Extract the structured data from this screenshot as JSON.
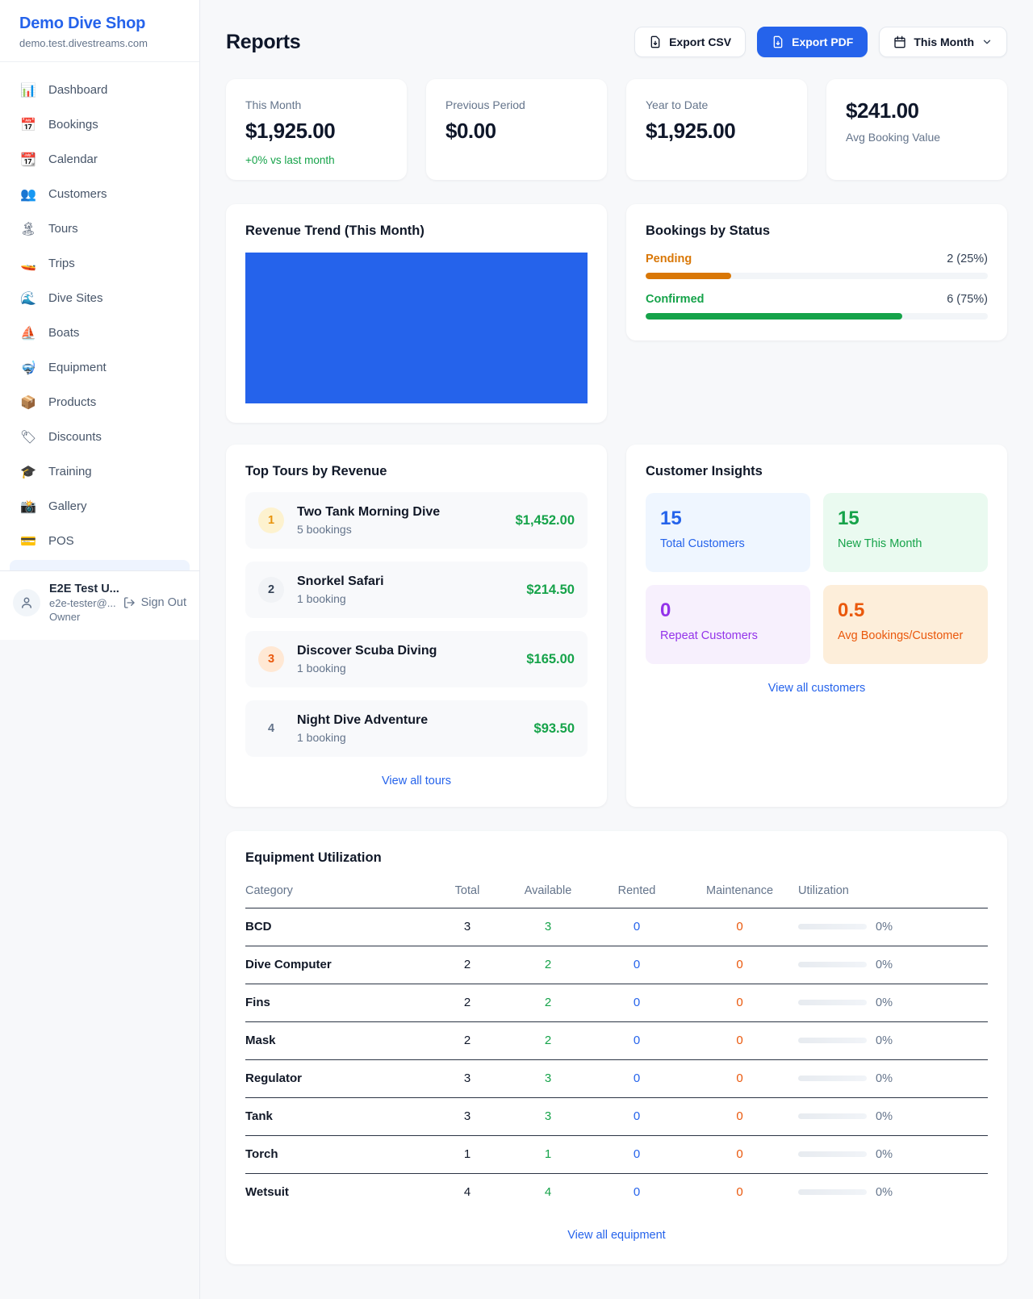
{
  "colors": {
    "accent_blue": "#2563eb",
    "green": "#16a34a",
    "amber": "#d97706",
    "orange": "#ea580c",
    "purple": "#9333ea",
    "text_muted": "#64748b"
  },
  "sidebar": {
    "brand": {
      "name": "Demo Dive Shop",
      "domain": "demo.test.divestreams.com"
    },
    "nav": [
      {
        "name": "sidebar-item-dashboard",
        "icon": "📊",
        "label": "Dashboard"
      },
      {
        "name": "sidebar-item-bookings",
        "icon": "📅",
        "label": "Bookings"
      },
      {
        "name": "sidebar-item-calendar",
        "icon": "📆",
        "label": "Calendar"
      },
      {
        "name": "sidebar-item-customers",
        "icon": "👥",
        "label": "Customers"
      },
      {
        "name": "sidebar-item-tours",
        "icon": "🏝",
        "label": "Tours"
      },
      {
        "name": "sidebar-item-trips",
        "icon": "🚤",
        "label": "Trips"
      },
      {
        "name": "sidebar-item-dive-sites",
        "icon": "🌊",
        "label": "Dive Sites"
      },
      {
        "name": "sidebar-item-boats",
        "icon": "⛵",
        "label": "Boats"
      },
      {
        "name": "sidebar-item-equipment",
        "icon": "🤿",
        "label": "Equipment"
      },
      {
        "name": "sidebar-item-products",
        "icon": "📦",
        "label": "Products"
      },
      {
        "name": "sidebar-item-discounts",
        "icon": "🏷",
        "label": "Discounts"
      },
      {
        "name": "sidebar-item-training",
        "icon": "🎓",
        "label": "Training"
      },
      {
        "name": "sidebar-item-gallery",
        "icon": "📸",
        "label": "Gallery"
      },
      {
        "name": "sidebar-item-pos",
        "icon": "💳",
        "label": "POS"
      }
    ],
    "user": {
      "name": "E2E Test U...",
      "email": "e2e-tester@...",
      "role": "Owner",
      "sign_out": "Sign Out"
    }
  },
  "header": {
    "title": "Reports",
    "export_csv": "Export CSV",
    "export_pdf": "Export PDF",
    "period": "This Month"
  },
  "stats": [
    {
      "name": "stat-this-month",
      "label_top": "This Month",
      "value": "$1,925.00",
      "delta": "+0% vs last month"
    },
    {
      "name": "stat-previous-period",
      "label_top": "Previous Period",
      "value": "$0.00"
    },
    {
      "name": "stat-year-to-date",
      "label_top": "Year to Date",
      "value": "$1,925.00"
    },
    {
      "name": "stat-avg-booking-value",
      "value": "$241.00",
      "label_bottom": "Avg Booking Value"
    }
  ],
  "revenue_trend": {
    "title": "Revenue Trend (This Month)",
    "bar_color": "#2563eb"
  },
  "bookings_by_status": {
    "title": "Bookings by Status",
    "rows": [
      {
        "name": "status-pending",
        "label": "Pending",
        "value": "2 (25%)",
        "pct": "25%",
        "color": "#d97706"
      },
      {
        "name": "status-confirmed",
        "label": "Confirmed",
        "value": "6 (75%)",
        "pct": "75%",
        "color": "#16a34a"
      }
    ]
  },
  "top_tours": {
    "title": "Top Tours by Revenue",
    "items": [
      {
        "name": "tour-two-tank-morning-dive",
        "rank": "1",
        "badge_bg": "#fdf2cf",
        "badge_fg": "#e8930c",
        "tour": "Two Tank Morning Dive",
        "bookings": "5 bookings",
        "amount": "$1,452.00"
      },
      {
        "name": "tour-snorkel-safari",
        "rank": "2",
        "badge_bg": "#f1f3f6",
        "badge_fg": "#334155",
        "tour": "Snorkel Safari",
        "bookings": "1 booking",
        "amount": "$214.50"
      },
      {
        "name": "tour-discover-scuba-diving",
        "rank": "3",
        "badge_bg": "#ffe8d4",
        "badge_fg": "#ea580c",
        "tour": "Discover Scuba Diving",
        "bookings": "1 booking",
        "amount": "$165.00"
      },
      {
        "name": "tour-night-dive-adventure",
        "rank": "4",
        "badge_bg": "transparent",
        "badge_fg": "#64748b",
        "tour": "Night Dive Adventure",
        "bookings": "1 booking",
        "amount": "$93.50"
      }
    ],
    "view_all": "View all tours"
  },
  "customer_insights": {
    "title": "Customer Insights",
    "tiles": [
      {
        "name": "insight-total-customers",
        "value": "15",
        "label": "Total Customers",
        "bg": "#eff6ff",
        "fg": "#2563eb"
      },
      {
        "name": "insight-new-this-month",
        "value": "15",
        "label": "New This Month",
        "bg": "#eafaf0",
        "fg": "#16a34a"
      },
      {
        "name": "insight-repeat-customers",
        "value": "0",
        "label": "Repeat Customers",
        "bg": "#f7f0fd",
        "fg": "#9333ea"
      },
      {
        "name": "insight-avg-bookings",
        "value": "0.5",
        "label": "Avg Bookings/Customer",
        "bg": "#fdeeda",
        "fg": "#ea580c"
      }
    ],
    "view_all": "View all customers"
  },
  "equipment": {
    "title": "Equipment Utilization",
    "columns": [
      "Category",
      "Total",
      "Available",
      "Rented",
      "Maintenance",
      "Utilization"
    ],
    "rows": [
      {
        "category": "BCD",
        "total": "3",
        "available": "3",
        "rented": "0",
        "maintenance": "0",
        "utilization": "0%"
      },
      {
        "category": "Dive Computer",
        "total": "2",
        "available": "2",
        "rented": "0",
        "maintenance": "0",
        "utilization": "0%"
      },
      {
        "category": "Fins",
        "total": "2",
        "available": "2",
        "rented": "0",
        "maintenance": "0",
        "utilization": "0%"
      },
      {
        "category": "Mask",
        "total": "2",
        "available": "2",
        "rented": "0",
        "maintenance": "0",
        "utilization": "0%"
      },
      {
        "category": "Regulator",
        "total": "3",
        "available": "3",
        "rented": "0",
        "maintenance": "0",
        "utilization": "0%"
      },
      {
        "category": "Tank",
        "total": "3",
        "available": "3",
        "rented": "0",
        "maintenance": "0",
        "utilization": "0%"
      },
      {
        "category": "Torch",
        "total": "1",
        "available": "1",
        "rented": "0",
        "maintenance": "0",
        "utilization": "0%"
      },
      {
        "category": "Wetsuit",
        "total": "4",
        "available": "4",
        "rented": "0",
        "maintenance": "0",
        "utilization": "0%"
      }
    ],
    "view_all": "View all equipment"
  },
  "chart_data": [
    {
      "type": "bar",
      "title": "Revenue Trend (This Month)",
      "categories": [
        "This Month"
      ],
      "values": [
        1925
      ],
      "bar_color": "#2563eb",
      "xlabel": "",
      "ylabel": "",
      "legend": "none",
      "grid": false
    },
    {
      "type": "bar",
      "title": "Bookings by Status",
      "categories": [
        "Pending",
        "Confirmed"
      ],
      "values": [
        2,
        6
      ],
      "percentages": [
        25,
        75
      ],
      "series_colors": [
        "#d97706",
        "#16a34a"
      ],
      "xlabel": "",
      "ylabel": "",
      "legend": "none"
    }
  ]
}
